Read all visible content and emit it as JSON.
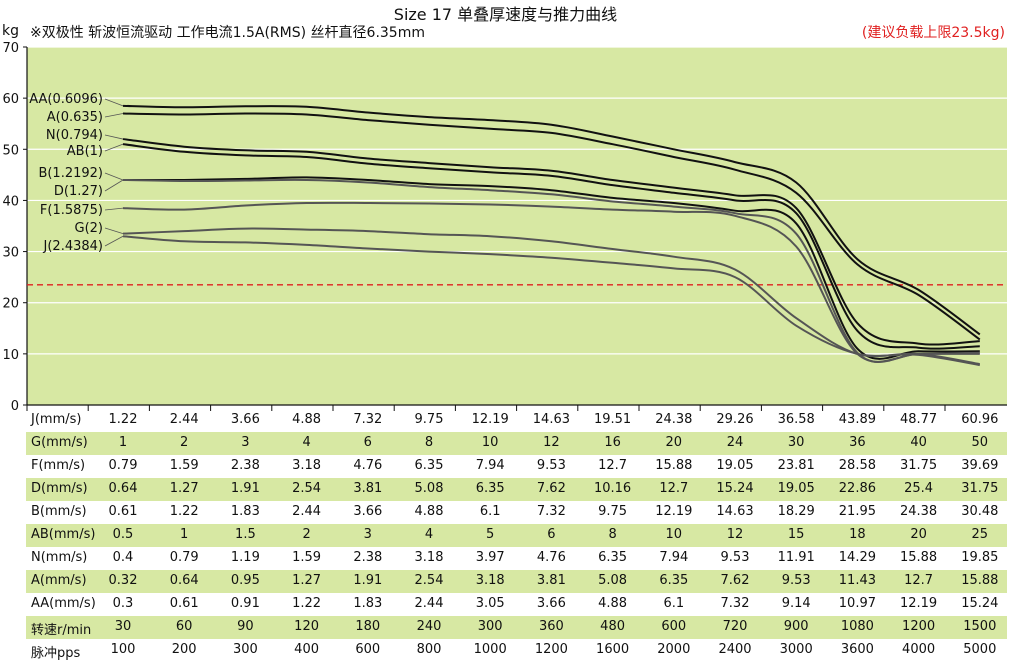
{
  "title": "Size 17 单叠厚速度与推力曲线",
  "subtitle": "※双极性 斩波恒流驱动 工作电流1.5A(RMS)  丝杆直径6.35mm",
  "note": "(建议负载上限23.5kg)",
  "colors": {
    "plot_bg": "#d7e8a3",
    "band_bg": "#d7e8a3",
    "dark_series": "#111111",
    "gray_series": "#555555",
    "limit_line": "#e02020"
  },
  "chart_data": {
    "type": "line",
    "ylabel": "kg",
    "ylim": [
      0,
      70
    ],
    "yticks": [
      0,
      10,
      20,
      30,
      40,
      50,
      60,
      70
    ],
    "grid": true,
    "x_steps": 15,
    "reference_line": {
      "value": 23.5,
      "style": "dashed",
      "color": "#e02020"
    },
    "series": [
      {
        "name": "AA(0.6096)",
        "color": "#111111",
        "values": [
          58.5,
          58.2,
          58.4,
          58.3,
          57.2,
          56.3,
          55.7,
          54.8,
          52.5,
          50.0,
          47.5,
          43.5,
          28.5,
          22.5,
          13.8
        ]
      },
      {
        "name": "A(0.635)",
        "color": "#111111",
        "values": [
          57.0,
          56.8,
          57.0,
          56.8,
          55.7,
          54.8,
          54.0,
          53.2,
          51.0,
          48.5,
          46.0,
          41.5,
          27.5,
          21.5,
          12.8
        ]
      },
      {
        "name": "N(0.794)",
        "color": "#111111",
        "values": [
          52.0,
          50.5,
          49.8,
          49.5,
          48.2,
          47.3,
          46.5,
          45.8,
          44.0,
          42.5,
          41.0,
          38.5,
          16.0,
          12.0,
          12.5
        ]
      },
      {
        "name": "AB(1)",
        "color": "#111111",
        "values": [
          51.0,
          49.5,
          48.8,
          48.5,
          47.2,
          46.3,
          45.5,
          44.8,
          43.0,
          41.5,
          40.0,
          37.5,
          14.5,
          11.2,
          11.5
        ]
      },
      {
        "name": "B(1.2192)",
        "color": "#111111",
        "values": [
          44.0,
          44.0,
          44.2,
          44.5,
          44.0,
          43.2,
          42.8,
          42.0,
          40.5,
          39.5,
          38.0,
          35.5,
          11.0,
          10.5,
          10.5
        ]
      },
      {
        "name": "D(1.27)",
        "color": "#555555",
        "values": [
          44.0,
          43.8,
          43.9,
          44.0,
          43.5,
          42.6,
          42.0,
          41.2,
          39.8,
          38.8,
          37.5,
          33.5,
          10.2,
          10.0,
          10.2
        ]
      },
      {
        "name": "F(1.5875)",
        "color": "#555555",
        "values": [
          38.5,
          38.2,
          39.0,
          39.5,
          39.5,
          39.4,
          39.2,
          38.8,
          38.2,
          37.8,
          37.0,
          31.0,
          10.0,
          10.0,
          10.0
        ]
      },
      {
        "name": "G(2)",
        "color": "#555555",
        "values": [
          33.5,
          34.0,
          34.5,
          34.3,
          34.0,
          33.4,
          33.0,
          32.0,
          30.5,
          29.0,
          26.5,
          17.0,
          10.0,
          10.0,
          8.0
        ]
      },
      {
        "name": "J(2.4384)",
        "color": "#555555",
        "values": [
          33.0,
          32.0,
          31.8,
          31.3,
          30.6,
          30.0,
          29.5,
          28.8,
          27.8,
          26.7,
          25.0,
          15.5,
          10.0,
          9.8,
          7.8
        ]
      }
    ]
  },
  "legend_labels": [
    "AA(0.6096)",
    "A(0.635)",
    "N(0.794)",
    "AB(1)",
    "B(1.2192)",
    "D(1.27)",
    "F(1.5875)",
    "G(2)",
    "J(2.4384)"
  ],
  "table": {
    "rows": [
      {
        "label": "J(mm/s)",
        "band": false,
        "values": [
          "1.22",
          "2.44",
          "3.66",
          "4.88",
          "7.32",
          "9.75",
          "12.19",
          "14.63",
          "19.51",
          "24.38",
          "29.26",
          "36.58",
          "43.89",
          "48.77",
          "60.96"
        ]
      },
      {
        "label": "G(mm/s)",
        "band": true,
        "values": [
          "1",
          "2",
          "3",
          "4",
          "6",
          "8",
          "10",
          "12",
          "16",
          "20",
          "24",
          "30",
          "36",
          "40",
          "50"
        ]
      },
      {
        "label": "F(mm/s)",
        "band": false,
        "values": [
          "0.79",
          "1.59",
          "2.38",
          "3.18",
          "4.76",
          "6.35",
          "7.94",
          "9.53",
          "12.7",
          "15.88",
          "19.05",
          "23.81",
          "28.58",
          "31.75",
          "39.69"
        ]
      },
      {
        "label": "D(mm/s)",
        "band": true,
        "values": [
          "0.64",
          "1.27",
          "1.91",
          "2.54",
          "3.81",
          "5.08",
          "6.35",
          "7.62",
          "10.16",
          "12.7",
          "15.24",
          "19.05",
          "22.86",
          "25.4",
          "31.75"
        ]
      },
      {
        "label": "B(mm/s)",
        "band": false,
        "values": [
          "0.61",
          "1.22",
          "1.83",
          "2.44",
          "3.66",
          "4.88",
          "6.1",
          "7.32",
          "9.75",
          "12.19",
          "14.63",
          "18.29",
          "21.95",
          "24.38",
          "30.48"
        ]
      },
      {
        "label": "AB(mm/s)",
        "band": true,
        "values": [
          "0.5",
          "1",
          "1.5",
          "2",
          "3",
          "4",
          "5",
          "6",
          "8",
          "10",
          "12",
          "15",
          "18",
          "20",
          "25"
        ]
      },
      {
        "label": "N(mm/s)",
        "band": false,
        "values": [
          "0.4",
          "0.79",
          "1.19",
          "1.59",
          "2.38",
          "3.18",
          "3.97",
          "4.76",
          "6.35",
          "7.94",
          "9.53",
          "11.91",
          "14.29",
          "15.88",
          "19.85"
        ]
      },
      {
        "label": "A(mm/s)",
        "band": true,
        "values": [
          "0.32",
          "0.64",
          "0.95",
          "1.27",
          "1.91",
          "2.54",
          "3.18",
          "3.81",
          "5.08",
          "6.35",
          "7.62",
          "9.53",
          "11.43",
          "12.7",
          "15.88"
        ]
      },
      {
        "label": "AA(mm/s)",
        "band": false,
        "values": [
          "0.3",
          "0.61",
          "0.91",
          "1.22",
          "1.83",
          "2.44",
          "3.05",
          "3.66",
          "4.88",
          "6.1",
          "7.32",
          "9.14",
          "10.97",
          "12.19",
          "15.24"
        ]
      },
      {
        "label": "转速r/min",
        "band": true,
        "values": [
          "30",
          "60",
          "90",
          "120",
          "180",
          "240",
          "300",
          "360",
          "480",
          "600",
          "720",
          "900",
          "1080",
          "1200",
          "1500"
        ]
      },
      {
        "label": "脉冲pps",
        "band": false,
        "values": [
          "100",
          "200",
          "300",
          "400",
          "600",
          "800",
          "1000",
          "1200",
          "1600",
          "2000",
          "2400",
          "3000",
          "3600",
          "4000",
          "5000"
        ]
      }
    ]
  }
}
